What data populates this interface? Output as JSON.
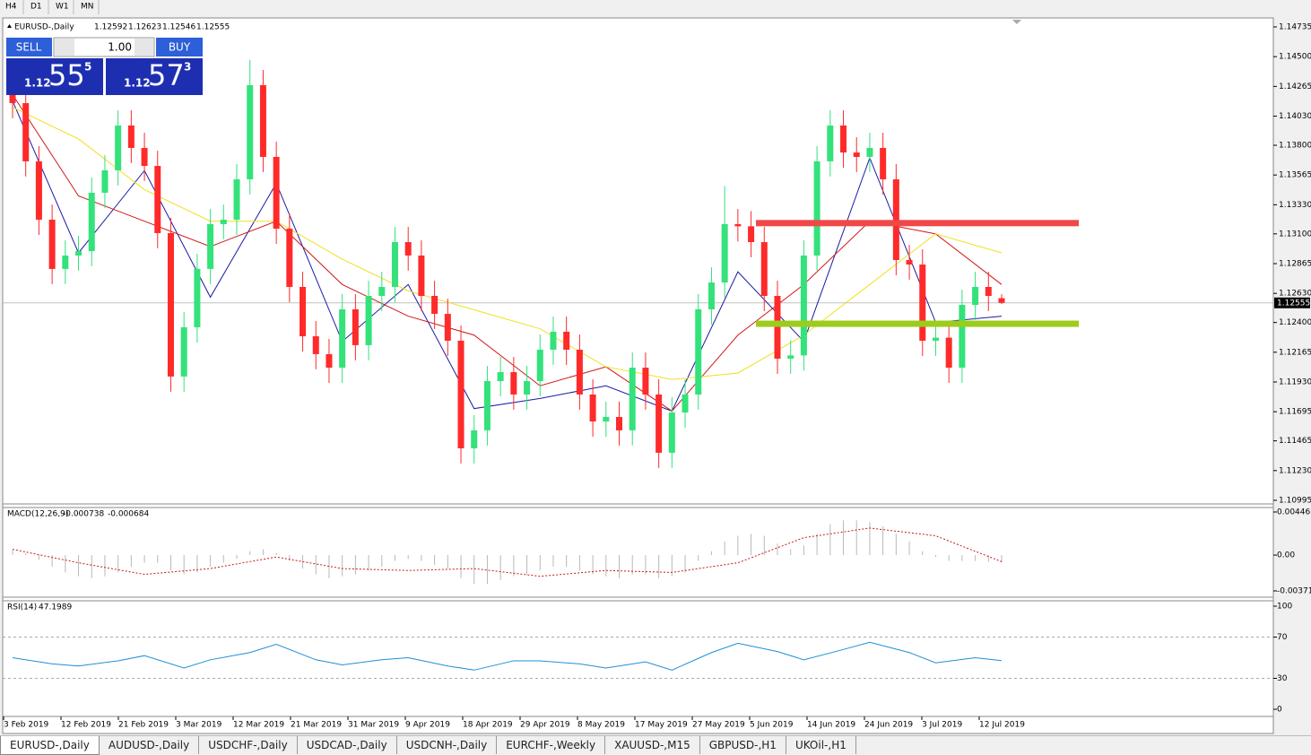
{
  "toolbar": {
    "timeframes": [
      "H4",
      "D1",
      "W1",
      "MN"
    ]
  },
  "trade_panel": {
    "sell": "SELL",
    "buy": "BUY",
    "lots": "1.00",
    "sell_price": {
      "big": "1.12",
      "main": "55",
      "pip": "5"
    },
    "buy_price": {
      "big": "1.12",
      "main": "57",
      "pip": "3"
    }
  },
  "chart_data": [
    {
      "type": "candlestick",
      "title": "EURUSD-,Daily",
      "quote": [
        1.12592,
        1.12623,
        1.12546,
        1.12555
      ],
      "up_color": "#33e27a",
      "down_color": "#ff2a2a",
      "last_price": 1.12555,
      "ylim": [
        1.10995,
        1.14735
      ],
      "yticks": [
        {
          "value": 1.14735,
          "label": "1.14735"
        },
        {
          "value": 1.145,
          "label": "1.14500"
        },
        {
          "value": 1.14265,
          "label": "1.14265"
        },
        {
          "value": 1.1403,
          "label": "1.14030"
        },
        {
          "value": 1.138,
          "label": "1.13800"
        },
        {
          "value": 1.13565,
          "label": "1.13565"
        },
        {
          "value": 1.1333,
          "label": "1.13330"
        },
        {
          "value": 1.131,
          "label": "1.13100"
        },
        {
          "value": 1.12865,
          "label": "1.12865"
        },
        {
          "value": 1.1263,
          "label": "1.12630"
        },
        {
          "value": 1.124,
          "label": "1.12400"
        },
        {
          "value": 1.12165,
          "label": "1.12165"
        },
        {
          "value": 1.1193,
          "label": "1.11930"
        },
        {
          "value": 1.11695,
          "label": "1.11695"
        },
        {
          "value": 1.11465,
          "label": "1.11465"
        },
        {
          "value": 1.1123,
          "label": "1.11230"
        },
        {
          "value": 1.10995,
          "label": "1.10995"
        }
      ],
      "x_labels": [
        "3 Feb 2019",
        "12 Feb 2019",
        "21 Feb 2019",
        "3 Mar 2019",
        "12 Mar 2019",
        "21 Mar 2019",
        "31 Mar 2019",
        "9 Apr 2019",
        "18 Apr 2019",
        "29 Apr 2019",
        "8 May 2019",
        "17 May 2019",
        "27 May 2019",
        "5 Jun 2019",
        "14 Jun 2019",
        "24 Jun 2019",
        "3 Jul 2019",
        "12 Jul 2019"
      ],
      "open": [
        1.142,
        1.14133,
        1.13673,
        1.13212,
        1.12823,
        1.12929,
        1.12964,
        1.13425,
        1.13602,
        1.13956,
        1.13779,
        1.13637,
        1.13106,
        1.11973,
        1.12362,
        1.12823,
        1.13177,
        1.13212,
        1.13531,
        1.14275,
        1.13708,
        1.13141,
        1.12681,
        1.12291,
        1.1215,
        1.12043,
        1.12504,
        1.12221,
        1.1261,
        1.12681,
        1.13035,
        1.12929,
        1.1261,
        1.12468,
        1.12256,
        1.11406,
        1.11548,
        1.11937,
        1.12008,
        1.11831,
        1.11937,
        1.12185,
        1.12327,
        1.12185,
        1.11831,
        1.11618,
        1.11654,
        1.11548,
        1.12043,
        1.11831,
        1.11371,
        1.11689,
        1.11831,
        1.12504,
        1.12716,
        1.13177,
        1.1316,
        1.13035,
        1.1261,
        1.12114,
        1.1214,
        1.12929,
        1.13673,
        1.13956,
        1.13743,
        1.13708,
        1.13779,
        1.13531,
        1.12893,
        1.12858,
        1.12256,
        1.1228,
        1.12043,
        1.12539,
        1.12681,
        1.12592
      ],
      "high": [
        1.1432,
        1.14253,
        1.13793,
        1.13332,
        1.13049,
        1.13084,
        1.13545,
        1.13722,
        1.14076,
        1.14076,
        1.13899,
        1.13757,
        1.13226,
        1.12482,
        1.12943,
        1.13297,
        1.13332,
        1.13651,
        1.14475,
        1.14395,
        1.13828,
        1.13261,
        1.12801,
        1.12411,
        1.1227,
        1.12624,
        1.12624,
        1.1273,
        1.12801,
        1.13155,
        1.13155,
        1.13049,
        1.1273,
        1.12588,
        1.12376,
        1.11668,
        1.12057,
        1.12128,
        1.12128,
        1.12057,
        1.12305,
        1.12447,
        1.12447,
        1.12305,
        1.11951,
        1.11774,
        1.11774,
        1.12163,
        1.12163,
        1.11951,
        1.11809,
        1.11951,
        1.12624,
        1.12836,
        1.13477,
        1.13297,
        1.1328,
        1.13155,
        1.1273,
        1.1226,
        1.13049,
        1.13793,
        1.14076,
        1.14076,
        1.13863,
        1.13899,
        1.13899,
        1.13651,
        1.13013,
        1.12978,
        1.124,
        1.124,
        1.12659,
        1.12801,
        1.12801,
        1.12623
      ],
      "low": [
        1.14013,
        1.13553,
        1.13092,
        1.12703,
        1.12703,
        1.12809,
        1.12844,
        1.13305,
        1.13482,
        1.13659,
        1.13517,
        1.12986,
        1.11853,
        1.11853,
        1.12242,
        1.12703,
        1.13057,
        1.13092,
        1.13411,
        1.13588,
        1.13021,
        1.12561,
        1.12171,
        1.1203,
        1.11923,
        1.11923,
        1.12101,
        1.12101,
        1.1249,
        1.12561,
        1.12809,
        1.1249,
        1.12348,
        1.12136,
        1.11286,
        1.11286,
        1.11428,
        1.11817,
        1.11711,
        1.11711,
        1.11817,
        1.12065,
        1.12065,
        1.11711,
        1.11498,
        1.11498,
        1.11428,
        1.11428,
        1.11711,
        1.11251,
        1.11251,
        1.11569,
        1.11711,
        1.12384,
        1.12596,
        1.1304,
        1.12915,
        1.1249,
        1.11994,
        1.11994,
        1.1202,
        1.12809,
        1.13553,
        1.13623,
        1.13588,
        1.13588,
        1.13411,
        1.12773,
        1.12738,
        1.12136,
        1.12136,
        1.11923,
        1.11923,
        1.12419,
        1.1249,
        1.12546
      ],
      "close": [
        1.14133,
        1.13673,
        1.13212,
        1.12823,
        1.12929,
        1.12964,
        1.13425,
        1.13602,
        1.13956,
        1.13779,
        1.13637,
        1.13106,
        1.11973,
        1.12362,
        1.12823,
        1.13177,
        1.13212,
        1.13531,
        1.14275,
        1.13708,
        1.13141,
        1.12681,
        1.12291,
        1.1215,
        1.12043,
        1.12504,
        1.12221,
        1.1261,
        1.12681,
        1.13035,
        1.12929,
        1.1261,
        1.12468,
        1.12256,
        1.11406,
        1.11548,
        1.11937,
        1.12008,
        1.11831,
        1.11937,
        1.12185,
        1.12327,
        1.12185,
        1.11831,
        1.11618,
        1.11654,
        1.11548,
        1.12043,
        1.11831,
        1.11371,
        1.11689,
        1.11831,
        1.12504,
        1.12716,
        1.13177,
        1.1316,
        1.13035,
        1.1261,
        1.12114,
        1.1214,
        1.12929,
        1.13673,
        1.13956,
        1.13743,
        1.13708,
        1.13779,
        1.13531,
        1.12893,
        1.12858,
        1.12256,
        1.1228,
        1.12043,
        1.12539,
        1.12681,
        1.1261,
        1.12555
      ],
      "lines": [
        {
          "color": "#1a1aa8",
          "x": [
            0,
            5,
            10,
            15,
            20,
            25,
            30,
            35,
            40,
            45,
            50,
            55,
            60,
            65,
            70,
            75
          ],
          "values": [
            1.1415,
            1.1295,
            1.136,
            1.126,
            1.135,
            1.1225,
            1.127,
            1.1172,
            1.118,
            1.119,
            1.117,
            1.128,
            1.1225,
            1.137,
            1.124,
            1.1245
          ]
        },
        {
          "color": "#d01818",
          "x": [
            0,
            5,
            10,
            15,
            20,
            25,
            30,
            35,
            40,
            45,
            50,
            55,
            60,
            65,
            70,
            75
          ],
          "values": [
            1.142,
            1.134,
            1.132,
            1.13,
            1.132,
            1.127,
            1.1245,
            1.123,
            1.119,
            1.1205,
            1.117,
            1.123,
            1.127,
            1.132,
            1.131,
            1.127
          ]
        },
        {
          "color": "#f0e020",
          "x": [
            0,
            5,
            10,
            15,
            20,
            25,
            30,
            35,
            40,
            45,
            50,
            55,
            60,
            65,
            70,
            75
          ],
          "values": [
            1.141,
            1.1385,
            1.1345,
            1.132,
            1.132,
            1.129,
            1.1265,
            1.125,
            1.1235,
            1.1205,
            1.1195,
            1.12,
            1.123,
            1.127,
            1.131,
            1.1295
          ]
        }
      ],
      "levels": [
        {
          "value": 1.13185,
          "color": "#f04848"
        },
        {
          "value": 1.1239,
          "color": "#9ccc1c"
        }
      ]
    },
    {
      "type": "macd",
      "title": "MACD(12,26,9)",
      "readout": [
        -0.000738,
        -0.000684
      ],
      "ylim": [
        -0.003715,
        0.004465
      ],
      "yticks": [
        0.004465,
        {
          "value": 0,
          "label": "0.00"
        },
        -0.003715
      ],
      "values": [
        0.0005,
        0.0002,
        -0.0005,
        -0.0012,
        -0.0018,
        -0.0022,
        -0.0024,
        -0.0022,
        -0.0018,
        -0.0012,
        -0.0008,
        -0.0008,
        -0.0016,
        -0.002,
        -0.0018,
        -0.0012,
        -0.0008,
        -0.0004,
        0.0004,
        0.0006,
        0.0002,
        -0.0006,
        -0.0014,
        -0.002,
        -0.0024,
        -0.0022,
        -0.002,
        -0.0016,
        -0.0012,
        -0.0006,
        -0.0004,
        -0.0006,
        -0.001,
        -0.0014,
        -0.0024,
        -0.003,
        -0.003,
        -0.0026,
        -0.0022,
        -0.002,
        -0.0016,
        -0.0012,
        -0.0012,
        -0.0016,
        -0.002,
        -0.0022,
        -0.0024,
        -0.002,
        -0.002,
        -0.0024,
        -0.0022,
        -0.0018,
        -0.0006,
        0.0004,
        0.0014,
        0.002,
        0.0022,
        0.002,
        0.0012,
        0.0006,
        0.001,
        0.0022,
        0.0032,
        0.0036,
        0.0036,
        0.0034,
        0.003,
        0.0022,
        0.0014,
        0.0004,
        -0.0002,
        -0.0006,
        -0.0006,
        -0.0006,
        -0.0007,
        -0.000738
      ],
      "bar_color": "#b8b8b8",
      "signal": {
        "color": "#c81818",
        "x": [
          0,
          5,
          10,
          15,
          20,
          25,
          30,
          35,
          40,
          45,
          50,
          55,
          60,
          65,
          70,
          75
        ],
        "values": [
          0.0006,
          -0.0008,
          -0.002,
          -0.0014,
          -0.0002,
          -0.0014,
          -0.0016,
          -0.0014,
          -0.0022,
          -0.0016,
          -0.0018,
          -0.0008,
          0.0018,
          0.0028,
          0.002,
          -0.000684
        ]
      }
    },
    {
      "type": "rsi",
      "title": "RSI(14)",
      "readout": 47.1989,
      "ylim": [
        0,
        100
      ],
      "yticks": [
        100,
        70,
        30,
        0
      ],
      "levels": [
        70,
        30
      ],
      "color": "#1e8fd6",
      "x": [
        0,
        3,
        5,
        8,
        10,
        13,
        15,
        18,
        20,
        23,
        25,
        28,
        30,
        33,
        35,
        38,
        40,
        43,
        45,
        48,
        50,
        53,
        55,
        58,
        60,
        63,
        65,
        68,
        70,
        73,
        75
      ],
      "values": [
        50,
        44,
        42,
        47,
        52,
        40,
        48,
        55,
        63,
        48,
        43,
        48,
        50,
        42,
        38,
        47,
        47,
        44,
        40,
        46,
        38,
        55,
        64,
        56,
        48,
        58,
        65,
        55,
        45,
        50,
        47.1989
      ]
    }
  ],
  "tabs": [
    "EURUSD-,Daily",
    "AUDUSD-,Daily",
    "USDCHF-,Daily",
    "USDCAD-,Daily",
    "USDCNH-,Daily",
    "EURCHF-,Weekly",
    "XAUUSD-,M15",
    "GBPUSD-,H1",
    "UKOil-,H1"
  ]
}
